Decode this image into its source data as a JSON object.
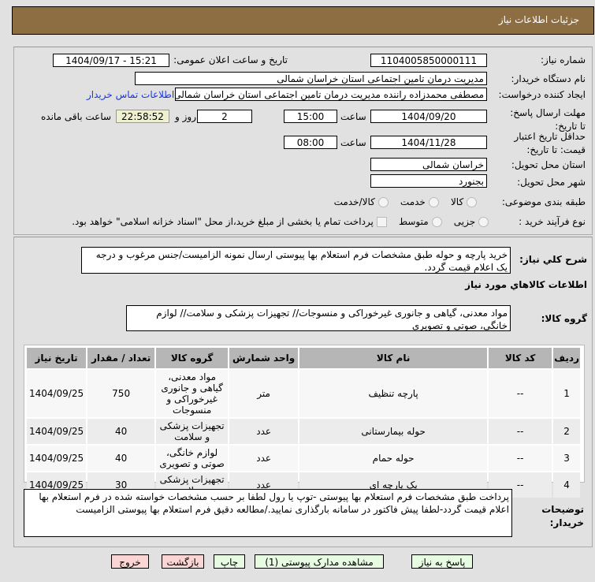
{
  "header": {
    "title": "جزئیات اطلاعات نیاز"
  },
  "form": {
    "need_number_label": "شماره نیاز:",
    "need_number": "1104005850000111",
    "announce_label": "تاریخ و ساعت اعلان عمومی:",
    "announce_value": "1404/09/17 - 15:21",
    "buyer_org_label": "نام دستگاه خریدار:",
    "buyer_org": "مدیریت درمان تامین اجتماعی استان خراسان شمالی",
    "creator_label": "ایجاد کننده درخواست:",
    "creator": "مصطفی محمدزاده راننده مدیریت درمان تامین اجتماعی استان خراسان شمالی",
    "contact_link": "اطلاعات تماس خریدار",
    "deadline_label": "مهلت ارسال پاسخ: تا تاریخ:",
    "deadline_date": "1404/09/20",
    "time_label": "ساعت",
    "deadline_time": "15:00",
    "days": "2",
    "days_label": "روز و",
    "remaining": "22:58:52",
    "remaining_label": "ساعت باقی مانده",
    "validity_label": "حداقل تاریخ اعتبار قیمت: تا تاریخ:",
    "validity_date": "1404/11/28",
    "validity_time": "08:00",
    "province_label": "استان محل تحویل:",
    "province": "خراسان شمالی",
    "city_label": "شهر محل تحویل:",
    "city": "بجنورد",
    "category_label": "طبقه بندی موضوعی:",
    "category_options": [
      "کالا",
      "خدمت",
      "کالا/خدمت"
    ],
    "category_selected": "کالا",
    "process_label": "نوع فرآیند خرید :",
    "process_options": [
      "جزیی",
      "متوسط"
    ],
    "process_selected": "جزیی",
    "treasury_text": "پرداخت تمام یا بخشی از مبلغ خرید،از محل \"اسناد خزانه اسلامی\" خواهد بود."
  },
  "description": {
    "label": "شرح کلي نياز:",
    "text": "خرید پارچه و حوله طبق مشخصات فرم استعلام بها پیوستی ارسال نمونه الزامیست/جنس مرغوب و درجه یک اعلام قیمت گردد."
  },
  "goods": {
    "section_title": "اطلاعات كالاهاي مورد نياز",
    "group_label": "گروه کالا:",
    "group_text": "مواد معدنی، گیاهی و جانوری غیرخوراکی و منسوجات// تجهیزات پزشکی و سلامت// لوازم خانگی، صوتی و تصویری"
  },
  "table": {
    "headers": [
      "ردیف",
      "کد کالا",
      "نام کالا",
      "واحد شمارش",
      "گروه کالا",
      "تعداد / مقدار",
      "تاریخ نیاز"
    ],
    "rows": [
      [
        "1",
        "--",
        "پارچه تنظیف",
        "متر",
        "مواد معدنی، گیاهی و جانوری غیرخوراکی و منسوجات",
        "750",
        "1404/09/25"
      ],
      [
        "2",
        "--",
        "حوله بیمارستانی",
        "عدد",
        "تجهیزات پزشکی و سلامت",
        "40",
        "1404/09/25"
      ],
      [
        "3",
        "--",
        "حوله حمام",
        "عدد",
        "لوازم خانگی، صوتی و تصویری",
        "40",
        "1404/09/25"
      ],
      [
        "4",
        "--",
        "پک پارچه ای",
        "عدد",
        "تجهیزات پزشکی و سلامت",
        "30",
        "1404/09/25"
      ]
    ]
  },
  "notes": {
    "label": "توضیحات خریدار:",
    "text": "پرداخت طبق مشخصات فرم استعلام بها پیوستی -توپ یا رول لطفا بر حسب مشخصات خواسته شده در فرم استعلام بها اعلام قیمت گردد-لطفا پیش فاکتور در سامانه بارگذاری نمایید./مطالعه دقیق فرم استعلام بها پیوستی الزامیست"
  },
  "buttons": {
    "reply": "پاسخ به نیاز",
    "attachments": "مشاهده مدارک پیوستی (1)",
    "print": "چاپ",
    "back": "بازگشت",
    "exit": "خروج"
  }
}
